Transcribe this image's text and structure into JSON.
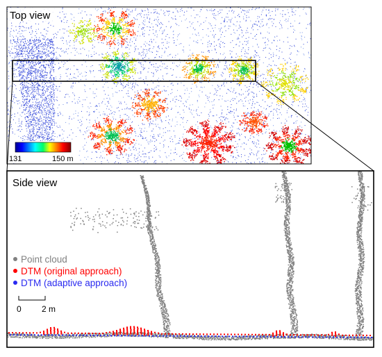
{
  "top_view": {
    "title": "Top view",
    "colorbar": {
      "min_label": "131",
      "max_label": "150 m"
    }
  },
  "side_view": {
    "title": "Side view",
    "legend": [
      {
        "label": "Point cloud",
        "color": "#808080"
      },
      {
        "label": "DTM (original approach)",
        "color": "#ff0000"
      },
      {
        "label": "DTM (adaptive approach)",
        "color": "#2a2af0"
      }
    ],
    "scale_bar": {
      "start_label": "0",
      "end_label": "2 m"
    }
  }
}
